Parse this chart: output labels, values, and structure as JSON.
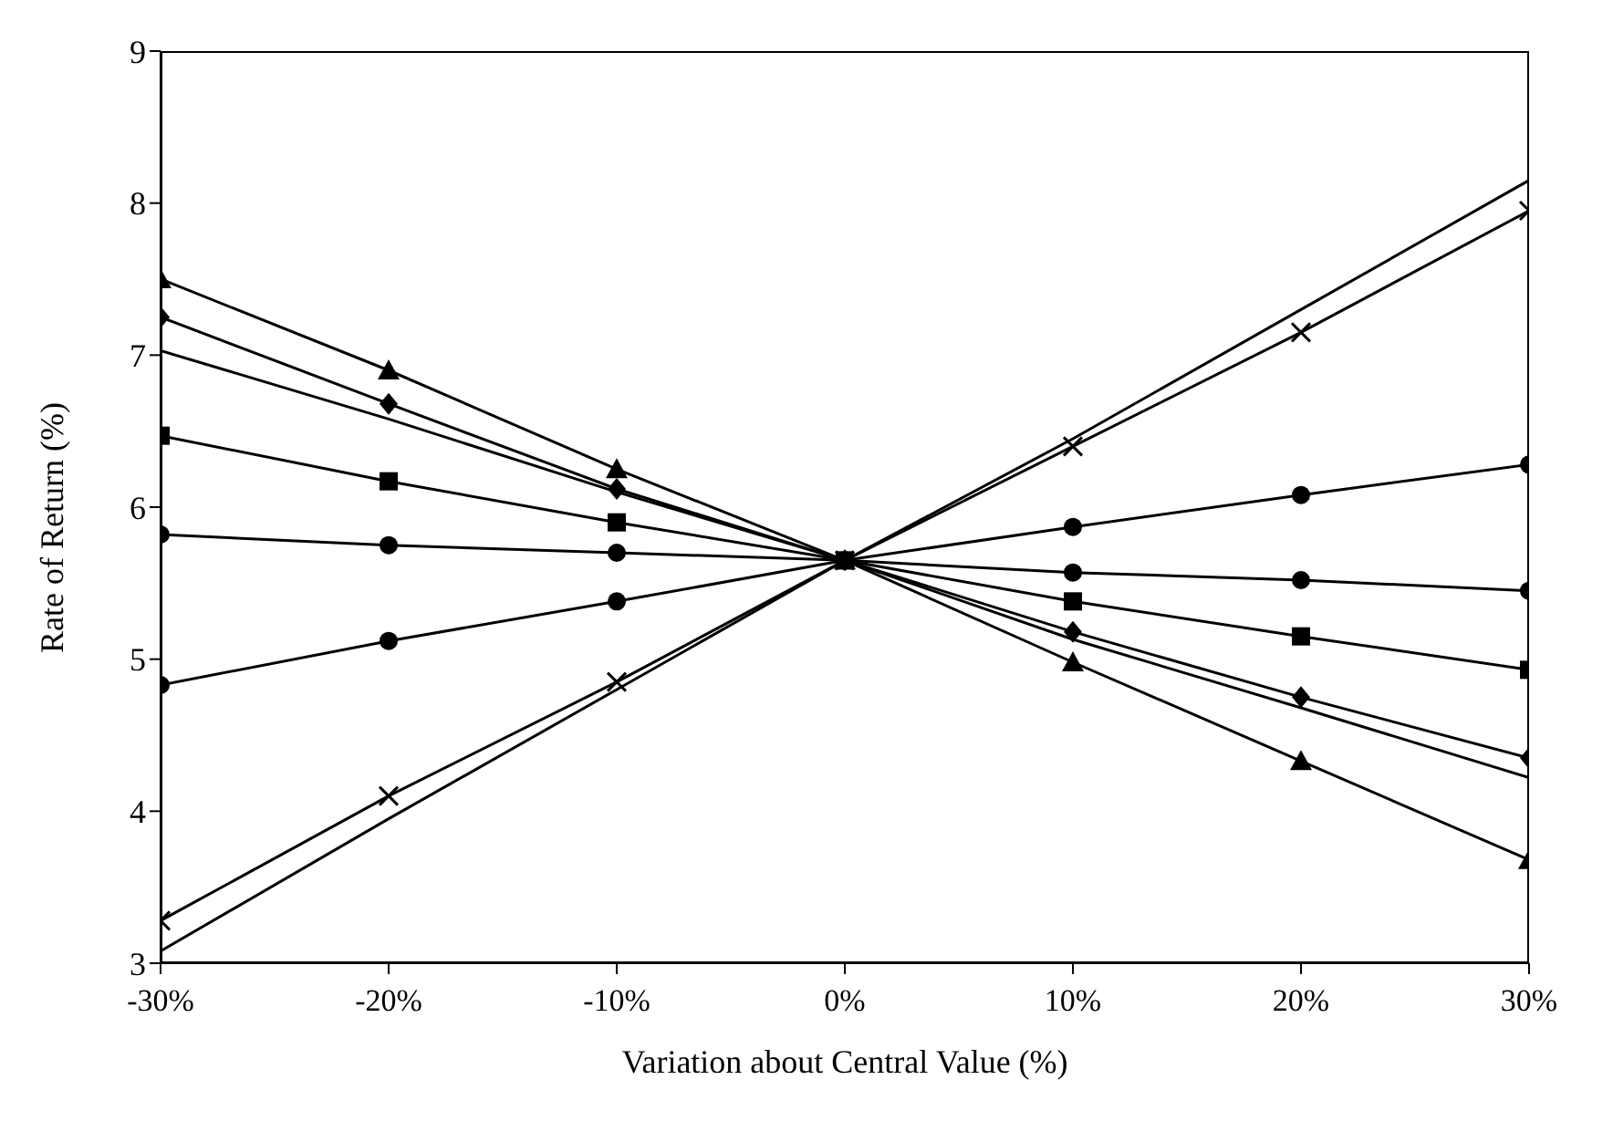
{
  "chart_data": {
    "type": "line",
    "xlabel": "Variation about Central Value (%)",
    "ylabel": "Rate of Return (%)",
    "x": [
      -30,
      -20,
      -10,
      0,
      10,
      20,
      30
    ],
    "xlim": [
      -30,
      30
    ],
    "xticks": [
      {
        "value": -30,
        "label": "-30%"
      },
      {
        "value": -20,
        "label": "-20%"
      },
      {
        "value": -10,
        "label": "-10%"
      },
      {
        "value": 0,
        "label": "0%"
      },
      {
        "value": 10,
        "label": "10%"
      },
      {
        "value": 20,
        "label": "20%"
      },
      {
        "value": 30,
        "label": "30%"
      }
    ],
    "ylim": [
      3,
      9
    ],
    "yticks": [
      3,
      4,
      5,
      6,
      7,
      8,
      9
    ],
    "grid": false,
    "legend": false,
    "line_style": "solid",
    "series": [
      {
        "color": "#000000",
        "marker": "triangle",
        "values": [
          7.5,
          6.9,
          6.25,
          5.65,
          4.98,
          4.33,
          3.68
        ]
      },
      {
        "color": "#000000",
        "marker": "diamond",
        "values": [
          7.25,
          6.68,
          6.12,
          5.65,
          5.18,
          4.75,
          4.35
        ]
      },
      {
        "color": "#000000",
        "marker": "none",
        "values": [
          7.03,
          6.58,
          6.1,
          5.65,
          5.13,
          4.68,
          4.22
        ]
      },
      {
        "color": "#000000",
        "marker": "square",
        "values": [
          6.47,
          6.17,
          5.9,
          5.65,
          5.38,
          5.15,
          4.93
        ]
      },
      {
        "color": "#000000",
        "marker": "circle",
        "values": [
          5.82,
          5.75,
          5.7,
          5.65,
          5.57,
          5.52,
          5.45
        ]
      },
      {
        "color": "#000000",
        "marker": "circle",
        "values": [
          4.83,
          5.12,
          5.38,
          5.65,
          5.87,
          6.08,
          6.28
        ]
      },
      {
        "color": "#000000",
        "marker": "cross",
        "values": [
          3.28,
          4.1,
          4.85,
          5.65,
          6.4,
          7.15,
          7.95
        ]
      },
      {
        "color": "#000000",
        "marker": "none",
        "values": [
          3.08,
          3.95,
          4.8,
          5.65,
          6.45,
          7.3,
          8.15
        ]
      }
    ]
  }
}
